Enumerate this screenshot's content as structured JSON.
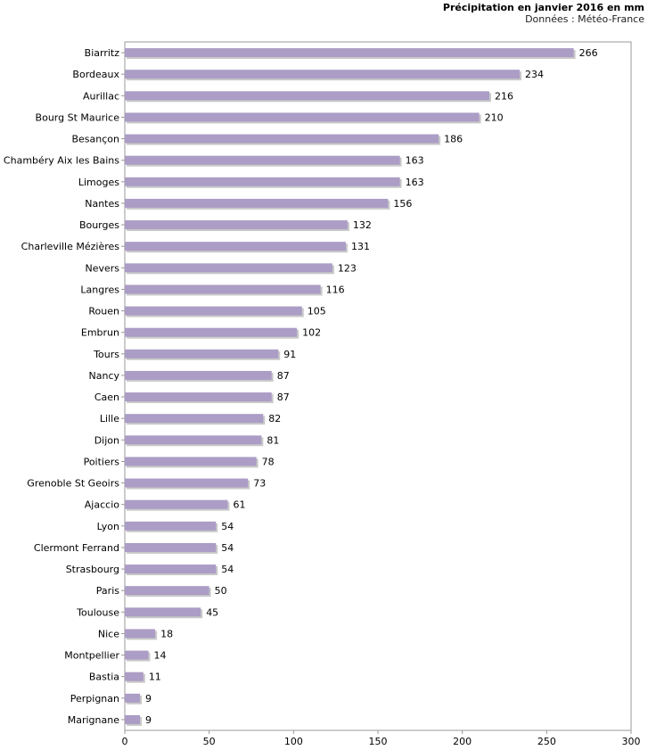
{
  "chart_data": {
    "type": "bar",
    "orientation": "horizontal",
    "title": "Précipitation en janvier 2016 en mm",
    "subtitle": "Données : Météo-France",
    "xlabel": "",
    "ylabel": "",
    "xlim": [
      0,
      300
    ],
    "xticks": [
      "0",
      "50",
      "100",
      "150",
      "200",
      "250",
      "300"
    ],
    "bar_color": "#ab9dc5",
    "shadow_color": "#c9c9c9",
    "categories": [
      "Biarritz",
      "Bordeaux",
      "Aurillac",
      "Bourg St Maurice",
      "Besançon",
      "Chambéry Aix les Bains",
      "Limoges",
      "Nantes",
      "Bourges",
      "Charleville Mézières",
      "Nevers",
      "Langres",
      "Rouen",
      "Embrun",
      "Tours",
      "Nancy",
      "Caen",
      "Lille",
      "Dijon",
      "Poitiers",
      "Grenoble St Geoirs",
      "Ajaccio",
      "Lyon",
      "Clermont Ferrand",
      "Strasbourg",
      "Paris",
      "Toulouse",
      "Nice",
      "Montpellier",
      "Bastia",
      "Perpignan",
      "Marignane"
    ],
    "values": [
      266,
      234,
      216,
      210,
      186,
      163,
      163,
      156,
      132,
      131,
      123,
      116,
      105,
      102,
      91,
      87,
      87,
      82,
      81,
      78,
      73,
      61,
      54,
      54,
      54,
      50,
      45,
      18,
      14,
      11,
      9,
      9
    ]
  }
}
